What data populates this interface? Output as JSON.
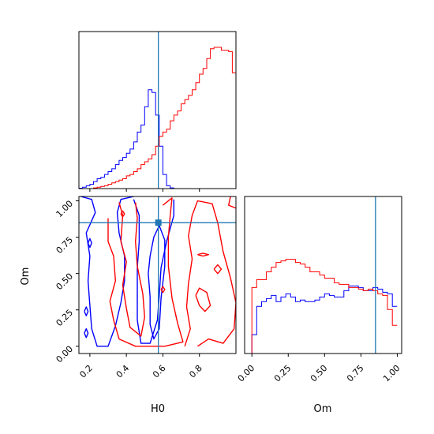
{
  "chart_data": {
    "type": "corner",
    "parameters": [
      "H0",
      "Om"
    ],
    "xlabel_h0": "H0",
    "xlabel_om": "Om",
    "ylabel_om": "Om",
    "h0_range": [
      0.14,
      1.0
    ],
    "om_range": [
      -0.05,
      1.03
    ],
    "h0_ticks": [
      0.2,
      0.4,
      0.6,
      0.8
    ],
    "h0_tick_labels": [
      "0.2",
      "0.4",
      "0.6",
      "0.8"
    ],
    "om_ticks": [
      0.0,
      0.25,
      0.5,
      0.75,
      1.0
    ],
    "om_tick_labels": [
      "0.00",
      "0.25",
      "0.50",
      "0.75",
      "1.00"
    ],
    "truth": {
      "H0": 0.575,
      "Om": 0.85
    },
    "colors": {
      "blue": "#0000ff",
      "red": "#ff0000",
      "truth": "#1f77b4"
    },
    "hist_h0": {
      "edges_start": 0.14,
      "bin_width": 0.02,
      "blue": [
        0.003,
        0.01,
        0.02,
        0.03,
        0.05,
        0.07,
        0.08,
        0.1,
        0.12,
        0.14,
        0.17,
        0.2,
        0.22,
        0.25,
        0.28,
        0.33,
        0.4,
        0.45,
        0.58,
        0.7,
        0.68,
        0.52,
        0.3,
        0.1,
        0.02,
        0.005,
        0,
        0,
        0,
        0,
        0,
        0,
        0,
        0,
        0,
        0,
        0,
        0,
        0,
        0,
        0,
        0,
        0
      ],
      "red": [
        0,
        0,
        0,
        0,
        0.005,
        0.01,
        0.015,
        0.02,
        0.03,
        0.04,
        0.05,
        0.06,
        0.07,
        0.09,
        0.1,
        0.12,
        0.14,
        0.17,
        0.19,
        0.21,
        0.24,
        0.3,
        0.37,
        0.4,
        0.42,
        0.48,
        0.52,
        0.55,
        0.6,
        0.63,
        0.66,
        0.7,
        0.75,
        0.81,
        0.85,
        0.92,
        0.99,
        1.0,
        1.0,
        0.98,
        0.98,
        0.97,
        0.82
      ]
    },
    "hist_om": {
      "edges_start": 0.0,
      "bin_width": 0.0333,
      "blue": [
        0.12,
        0.3,
        0.33,
        0.35,
        0.37,
        0.33,
        0.36,
        0.38,
        0.36,
        0.33,
        0.34,
        0.33,
        0.33,
        0.34,
        0.36,
        0.38,
        0.37,
        0.36,
        0.36,
        0.4,
        0.43,
        0.43,
        0.42,
        0.4,
        0.4,
        0.42,
        0.41,
        0.39,
        0.38,
        0.3
      ],
      "red": [
        0.42,
        0.47,
        0.47,
        0.52,
        0.55,
        0.58,
        0.59,
        0.6,
        0.6,
        0.58,
        0.57,
        0.55,
        0.52,
        0.52,
        0.5,
        0.48,
        0.48,
        0.45,
        0.44,
        0.44,
        0.42,
        0.42,
        0.41,
        0.4,
        0.41,
        0.4,
        0.38,
        0.37,
        0.28,
        0.18
      ]
    },
    "contours": [
      {
        "series": "blue",
        "points": [
          [
            0.44,
            1.01
          ],
          [
            0.47,
            0.9
          ],
          [
            0.47,
            0.72
          ],
          [
            0.46,
            0.54
          ],
          [
            0.46,
            0.35
          ],
          [
            0.46,
            0.18
          ],
          [
            0.48,
            0.02
          ],
          [
            0.53,
            0.02
          ],
          [
            0.57,
            0.18
          ],
          [
            0.58,
            0.35
          ],
          [
            0.59,
            0.54
          ],
          [
            0.62,
            0.72
          ],
          [
            0.66,
            0.9
          ],
          [
            0.66,
            1.01
          ]
        ]
      },
      {
        "series": "blue",
        "points": [
          [
            0.52,
            0.5
          ],
          [
            0.53,
            0.34
          ],
          [
            0.53,
            0.15
          ],
          [
            0.55,
            0.05
          ],
          [
            0.58,
            0.12
          ],
          [
            0.59,
            0.33
          ],
          [
            0.61,
            0.55
          ],
          [
            0.61,
            0.73
          ],
          [
            0.58,
            0.83
          ],
          [
            0.55,
            0.75
          ],
          [
            0.53,
            0.62
          ],
          [
            0.52,
            0.5
          ]
        ]
      },
      {
        "series": "blue",
        "points": [
          [
            0.15,
            1.03
          ],
          [
            0.21,
            1.01
          ],
          [
            0.23,
            0.92
          ],
          [
            0.18,
            0.78
          ],
          [
            0.2,
            0.62
          ],
          [
            0.19,
            0.45
          ],
          [
            0.2,
            0.28
          ],
          [
            0.21,
            0.12
          ],
          [
            0.24,
            0.0
          ],
          [
            0.3,
            0.0
          ],
          [
            0.34,
            0.14
          ],
          [
            0.37,
            0.3
          ],
          [
            0.39,
            0.45
          ],
          [
            0.39,
            0.62
          ],
          [
            0.36,
            0.78
          ],
          [
            0.35,
            0.92
          ],
          [
            0.37,
            1.01
          ],
          [
            0.44,
            1.03
          ]
        ]
      },
      {
        "series": "blue",
        "points": [
          [
            0.19,
            0.71
          ],
          [
            0.2,
            0.68
          ],
          [
            0.21,
            0.71
          ],
          [
            0.2,
            0.74
          ],
          [
            0.19,
            0.71
          ]
        ]
      },
      {
        "series": "blue",
        "points": [
          [
            0.17,
            0.24
          ],
          [
            0.18,
            0.21
          ],
          [
            0.19,
            0.24
          ],
          [
            0.18,
            0.27
          ],
          [
            0.17,
            0.24
          ]
        ]
      },
      {
        "series": "blue",
        "points": [
          [
            0.17,
            0.09
          ],
          [
            0.18,
            0.06
          ],
          [
            0.19,
            0.09
          ],
          [
            0.18,
            0.12
          ],
          [
            0.17,
            0.09
          ]
        ]
      },
      {
        "series": "red",
        "points": [
          [
            0.3,
            0.88
          ],
          [
            0.3,
            0.72
          ],
          [
            0.33,
            0.62
          ],
          [
            0.34,
            0.45
          ],
          [
            0.31,
            0.31
          ],
          [
            0.33,
            0.18
          ],
          [
            0.36,
            0.05
          ],
          [
            0.45,
            0.0
          ],
          [
            0.61,
            0.0
          ],
          [
            0.71,
            0.03
          ],
          [
            0.68,
            0.16
          ],
          [
            0.65,
            0.33
          ],
          [
            0.63,
            0.55
          ],
          [
            0.63,
            0.75
          ],
          [
            0.64,
            0.9
          ],
          [
            0.65,
            1.02
          ],
          [
            0.6,
            0.97
          ]
        ]
      },
      {
        "series": "red",
        "points": [
          [
            0.36,
            0.99
          ],
          [
            0.38,
            0.9
          ],
          [
            0.37,
            0.72
          ],
          [
            0.4,
            0.58
          ],
          [
            0.38,
            0.42
          ],
          [
            0.4,
            0.26
          ],
          [
            0.42,
            0.13
          ],
          [
            0.48,
            0.07
          ],
          [
            0.5,
            0.2
          ],
          [
            0.49,
            0.36
          ],
          [
            0.46,
            0.55
          ],
          [
            0.45,
            0.72
          ],
          [
            0.46,
            0.88
          ],
          [
            0.45,
            0.99
          ]
        ]
      },
      {
        "series": "red",
        "points": [
          [
            0.72,
            0.0
          ],
          [
            0.75,
            0.12
          ],
          [
            0.73,
            0.27
          ],
          [
            0.74,
            0.43
          ],
          [
            0.76,
            0.6
          ],
          [
            0.74,
            0.76
          ],
          [
            0.76,
            0.9
          ],
          [
            0.79,
            1.0
          ],
          [
            0.87,
            0.98
          ],
          [
            0.9,
            0.85
          ],
          [
            0.93,
            0.65
          ],
          [
            0.97,
            0.47
          ],
          [
            1.0,
            0.3
          ],
          [
            0.99,
            0.12
          ],
          [
            0.93,
            0.02
          ],
          [
            0.85,
            0.05
          ],
          [
            0.79,
            0.0
          ]
        ]
      },
      {
        "series": "red",
        "points": [
          [
            0.78,
            0.35
          ],
          [
            0.8,
            0.28
          ],
          [
            0.83,
            0.24
          ],
          [
            0.86,
            0.28
          ],
          [
            0.84,
            0.37
          ],
          [
            0.8,
            0.4
          ],
          [
            0.78,
            0.35
          ]
        ]
      },
      {
        "series": "red",
        "points": [
          [
            0.79,
            0.63
          ],
          [
            0.82,
            0.62
          ],
          [
            0.85,
            0.63
          ],
          [
            0.82,
            0.64
          ],
          [
            0.79,
            0.63
          ]
        ]
      },
      {
        "series": "red",
        "points": [
          [
            0.88,
            0.53
          ],
          [
            0.9,
            0.5
          ],
          [
            0.92,
            0.53
          ],
          [
            0.9,
            0.56
          ],
          [
            0.88,
            0.53
          ]
        ]
      },
      {
        "series": "red",
        "points": [
          [
            0.97,
            1.03
          ],
          [
            0.96,
            0.97
          ],
          [
            1.0,
            0.95
          ]
        ]
      },
      {
        "series": "red",
        "points": [
          [
            0.37,
            0.91
          ],
          [
            0.38,
            0.89
          ],
          [
            0.39,
            0.91
          ],
          [
            0.38,
            0.93
          ],
          [
            0.37,
            0.91
          ]
        ]
      },
      {
        "series": "red",
        "points": [
          [
            0.59,
            0.39
          ],
          [
            0.6,
            0.37
          ],
          [
            0.61,
            0.39
          ],
          [
            0.6,
            0.41
          ],
          [
            0.59,
            0.39
          ]
        ]
      }
    ]
  }
}
